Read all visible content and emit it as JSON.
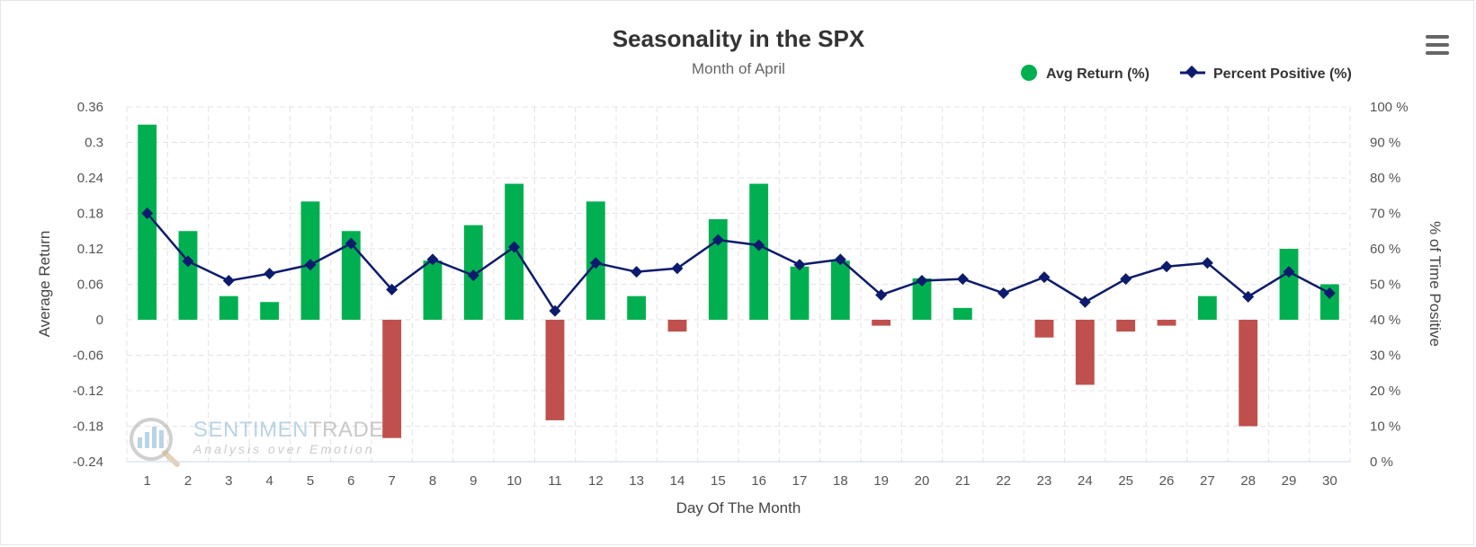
{
  "chart_data": {
    "type": "bar",
    "title": "Seasonality in the SPX",
    "subtitle": "Month of April",
    "xlabel": "Day Of The Month",
    "ylabel": "Average Return",
    "y2label": "% of Time Positive",
    "categories": [
      "1",
      "2",
      "3",
      "4",
      "5",
      "6",
      "7",
      "8",
      "9",
      "10",
      "11",
      "12",
      "13",
      "14",
      "15",
      "16",
      "17",
      "18",
      "19",
      "20",
      "21",
      "22",
      "23",
      "24",
      "25",
      "26",
      "27",
      "28",
      "29",
      "30"
    ],
    "ylim": [
      -0.24,
      0.36
    ],
    "y_ticks": [
      "0.36",
      "0.3",
      "0.24",
      "0.18",
      "0.12",
      "0.06",
      "0",
      "-0.06",
      "-0.12",
      "-0.18",
      "-0.24"
    ],
    "y2lim": [
      0,
      100
    ],
    "y2_ticks": [
      "100 %",
      "90 %",
      "80 %",
      "70 %",
      "60 %",
      "50 %",
      "40 %",
      "30 %",
      "20 %",
      "10 %",
      "0 %"
    ],
    "grid": true,
    "legend_position": "top-right",
    "series": [
      {
        "name": "Avg Return (%)",
        "type": "bar",
        "axis": "left",
        "color_positive": "#00b050",
        "color_negative": "#c0504d",
        "values": [
          0.33,
          0.15,
          0.04,
          0.03,
          0.2,
          0.15,
          -0.2,
          0.1,
          0.16,
          0.23,
          -0.17,
          0.2,
          0.04,
          -0.02,
          0.17,
          0.23,
          0.09,
          0.1,
          -0.01,
          0.07,
          0.02,
          0.0,
          -0.03,
          -0.11,
          -0.02,
          -0.01,
          0.04,
          -0.18,
          0.12,
          0.06
        ]
      },
      {
        "name": "Percent Positive (%)",
        "type": "line",
        "axis": "right",
        "color": "#0d1b6e",
        "values": [
          70,
          56.5,
          51,
          53,
          55.5,
          61.5,
          48.5,
          57,
          52.5,
          60.5,
          42.5,
          56,
          53.5,
          54.5,
          62.5,
          61,
          55.5,
          57,
          47,
          51,
          51.5,
          47.5,
          52,
          45,
          51.5,
          55,
          56,
          46.5,
          53.5,
          47.5
        ]
      }
    ]
  },
  "watermark": {
    "brand_part1": "SENTIMEN",
    "brand_part2": "TRADER",
    "tagline": "Analysis over Emotion"
  },
  "menu": {
    "icon": "hamburger-menu-icon"
  }
}
